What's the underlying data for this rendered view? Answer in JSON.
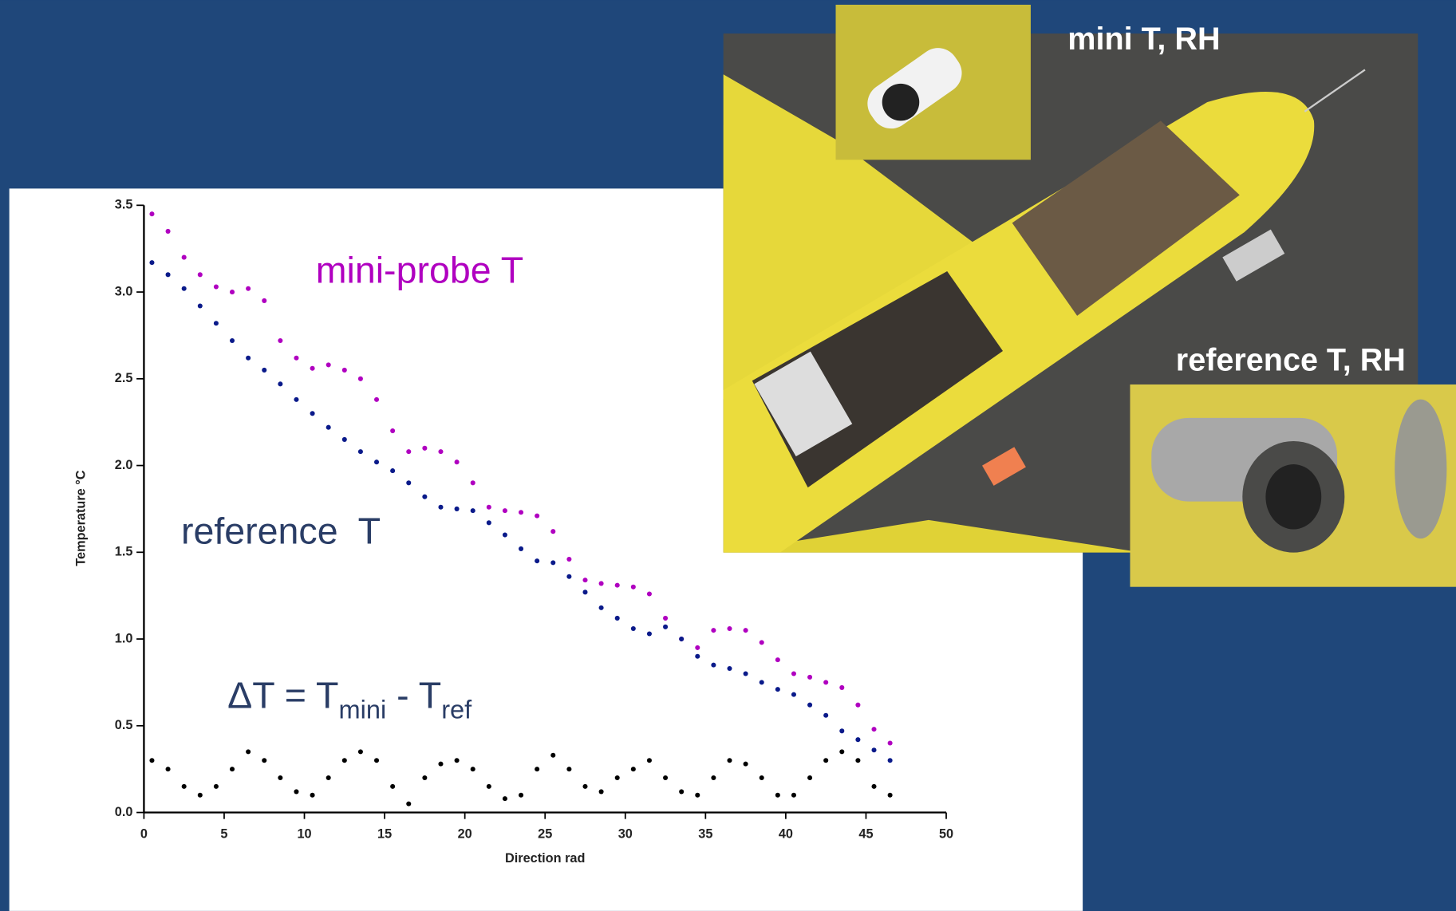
{
  "chart_data": {
    "type": "scatter",
    "xlabel": "Direction rad",
    "ylabel": "Temperature °C",
    "xlim": [
      0,
      50
    ],
    "xticks": [
      0,
      5,
      10,
      15,
      20,
      25,
      30,
      35,
      40,
      45,
      50
    ],
    "ylim": [
      0,
      3.5
    ],
    "yticks": [
      {
        "value": 0,
        "label": "0.0"
      },
      {
        "value": 0.5,
        "label": "0.5"
      },
      {
        "value": 1,
        "label": "1.0"
      },
      {
        "value": 1.5,
        "label": "1.5"
      },
      {
        "value": 2,
        "label": "2.0"
      },
      {
        "value": 2.5,
        "label": "2.5"
      },
      {
        "value": 3,
        "label": "3.0"
      },
      {
        "value": 3.5,
        "label": "3.5"
      }
    ],
    "x": [
      0.5,
      1.5,
      2.5,
      3.5,
      4.5,
      5.5,
      6.5,
      7.5,
      8.5,
      9.5,
      10.5,
      11.5,
      12.5,
      13.5,
      14.5,
      15.5,
      16.5,
      17.5,
      18.5,
      19.5,
      20.5,
      21.5,
      22.5,
      23.5,
      24.5,
      25.5,
      26.5,
      27.5,
      28.5,
      29.5,
      30.5,
      31.5,
      32.5,
      33.5,
      34.5,
      35.5,
      36.5,
      37.5,
      38.5,
      39.5,
      40.5,
      41.5,
      42.5,
      43.5,
      44.5,
      45.5,
      46.5
    ],
    "series": [
      {
        "name": "mini-probe T",
        "color": "#b000c0",
        "values": [
          3.45,
          3.35,
          3.2,
          3.1,
          3.03,
          3.0,
          3.02,
          2.95,
          2.72,
          2.62,
          2.56,
          2.58,
          2.55,
          2.5,
          2.38,
          2.2,
          2.08,
          2.1,
          2.08,
          2.02,
          1.9,
          1.76,
          1.74,
          1.73,
          1.71,
          1.62,
          1.46,
          1.34,
          1.32,
          1.31,
          1.3,
          1.26,
          1.12,
          1.0,
          0.95,
          1.05,
          1.06,
          1.05,
          0.98,
          0.88,
          0.8,
          0.78,
          0.75,
          0.72,
          0.62,
          0.48,
          0.4
        ]
      },
      {
        "name": "reference  T",
        "color": "#0a1a8a",
        "values": [
          3.17,
          3.1,
          3.02,
          2.92,
          2.82,
          2.72,
          2.62,
          2.55,
          2.47,
          2.38,
          2.3,
          2.22,
          2.15,
          2.08,
          2.02,
          1.97,
          1.9,
          1.82,
          1.76,
          1.75,
          1.74,
          1.67,
          1.6,
          1.52,
          1.45,
          1.44,
          1.36,
          1.27,
          1.18,
          1.12,
          1.06,
          1.03,
          1.07,
          1.0,
          0.9,
          0.85,
          0.83,
          0.8,
          0.75,
          0.71,
          0.68,
          0.62,
          0.56,
          0.47,
          0.42,
          0.36,
          0.3
        ]
      },
      {
        "color": "#000000",
        "values": [
          0.3,
          0.25,
          0.15,
          0.1,
          0.15,
          0.25,
          0.35,
          0.3,
          0.2,
          0.12,
          0.1,
          0.2,
          0.3,
          0.35,
          0.3,
          0.15,
          0.05,
          0.2,
          0.28,
          0.3,
          0.25,
          0.15,
          0.08,
          0.1,
          0.25,
          0.33,
          0.25,
          0.15,
          0.12,
          0.2,
          0.25,
          0.3,
          0.2,
          0.12,
          0.1,
          0.2,
          0.3,
          0.28,
          0.2,
          0.1,
          0.1,
          0.2,
          0.3,
          0.35,
          0.3,
          0.15,
          0.1
        ]
      }
    ],
    "delta_label": [
      "ΔT = T",
      "mini",
      " - T",
      "ref"
    ]
  },
  "photos": {
    "labels": [
      "mini T, RH",
      "reference T, RH"
    ]
  }
}
